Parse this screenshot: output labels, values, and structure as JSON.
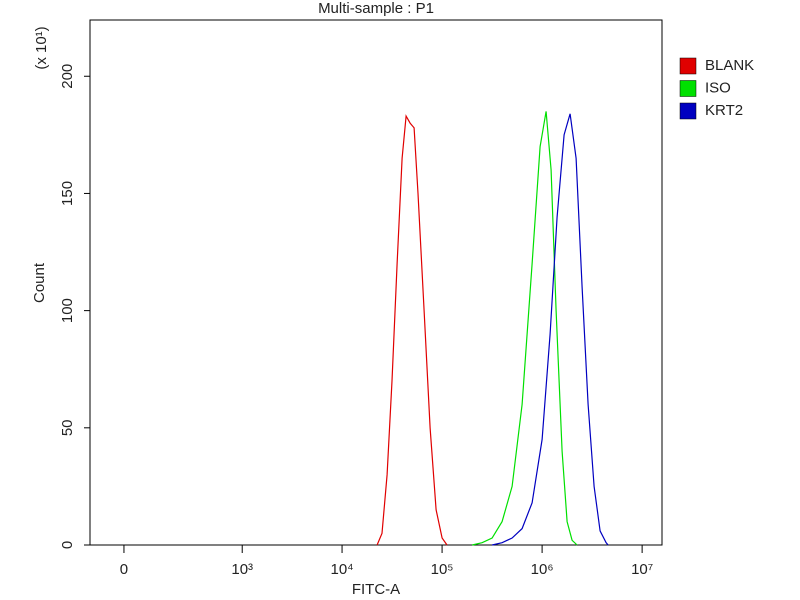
{
  "chart_data": {
    "type": "histogram-overlay",
    "title": "Multi-sample : P1",
    "x_label": "FITC-A",
    "y_label": "Count",
    "y_multiplier": "(x 10¹)",
    "x_scale": "biexponential",
    "xlim": [
      -114,
      15800000
    ],
    "xticks": [
      0,
      {
        "value": 1000,
        "label": "10³"
      },
      {
        "value": 10000,
        "label": "10⁴"
      },
      {
        "value": 100000,
        "label": "10⁵"
      },
      {
        "value": 1000000,
        "label": "10⁶"
      },
      {
        "value": 10000000,
        "label": "10⁷"
      }
    ],
    "ylim": [
      0,
      224
    ],
    "yticks": [
      0,
      50,
      100,
      150,
      200
    ],
    "legend": "right",
    "series": [
      {
        "name": "BLANK",
        "color": "#e00000",
        "x": [
          22400,
          25100,
          28200,
          31600,
          35500,
          39800,
          43700,
          47900,
          52500,
          57500,
          66100,
          75900,
          87100,
          100000,
          112000
        ],
        "values": [
          0,
          5,
          30,
          70,
          120,
          165,
          183,
          180,
          178,
          150,
          100,
          50,
          15,
          3,
          0
        ]
      },
      {
        "name": "ISO",
        "color": "#00e000",
        "x": [
          200000,
          251000,
          316000,
          398000,
          501000,
          631000,
          794000,
          955000,
          1096000,
          1230000,
          1380000,
          1585000,
          1778000,
          1995000,
          2239000
        ],
        "values": [
          0,
          1,
          3,
          10,
          25,
          60,
          120,
          170,
          185,
          160,
          100,
          40,
          10,
          2,
          0
        ]
      },
      {
        "name": "KRT2",
        "color": "#0000c0",
        "x": [
          316000,
          398000,
          501000,
          631000,
          794000,
          1000000,
          1202000,
          1413000,
          1660000,
          1905000,
          2188000,
          2512000,
          2884000,
          3311000,
          3802000,
          4365000,
          4571000
        ],
        "values": [
          0,
          1,
          3,
          7,
          18,
          45,
          90,
          140,
          175,
          184,
          165,
          110,
          60,
          25,
          6,
          1,
          0
        ]
      }
    ]
  }
}
